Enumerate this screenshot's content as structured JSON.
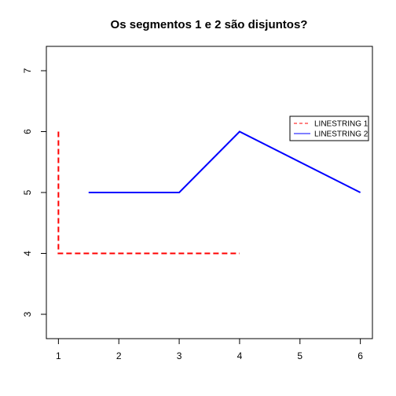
{
  "chart_data": {
    "type": "line",
    "title": "Os segmentos 1 e 2 são disjuntos?",
    "xlabel": "",
    "ylabel": "",
    "xlim": [
      0.8,
      6.2
    ],
    "ylim": [
      2.6,
      7.4
    ],
    "x_ticks": [
      1,
      2,
      3,
      4,
      5,
      6
    ],
    "y_ticks": [
      3,
      4,
      5,
      6,
      7
    ],
    "grid": false,
    "legend_position": "right",
    "series": [
      {
        "name": "LINESTRING 1",
        "color": "#ff0000",
        "style": "dashed",
        "points": [
          [
            1,
            6
          ],
          [
            1,
            4
          ],
          [
            4,
            4
          ]
        ]
      },
      {
        "name": "LINESTRING 2",
        "color": "#0000ff",
        "style": "solid",
        "points": [
          [
            1.5,
            5
          ],
          [
            3,
            5
          ],
          [
            4,
            6
          ],
          [
            6,
            5
          ]
        ]
      }
    ]
  }
}
